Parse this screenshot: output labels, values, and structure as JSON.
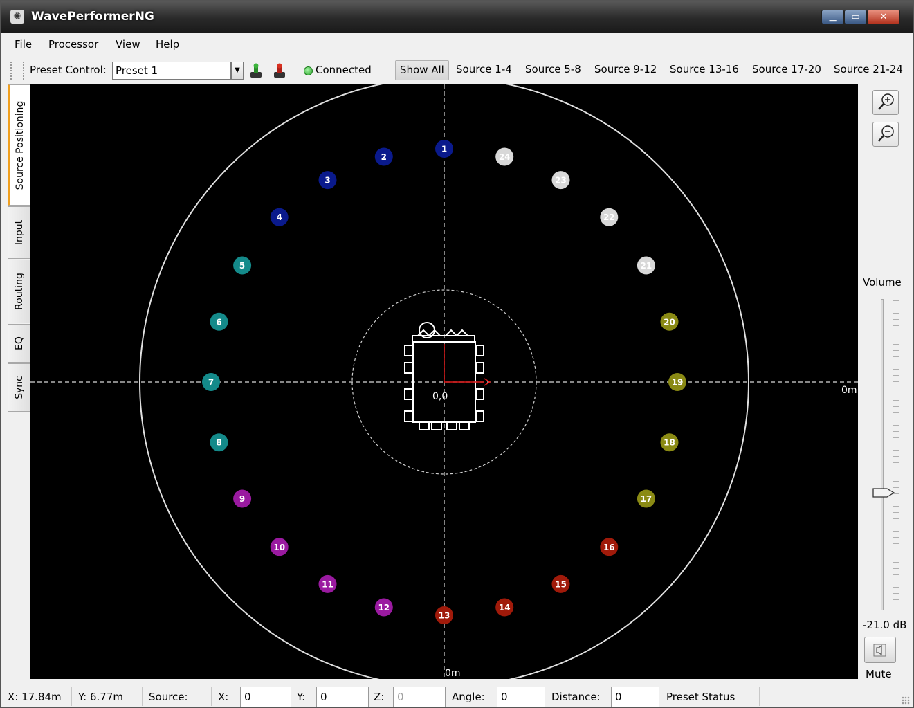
{
  "window": {
    "title": "WavePerformerNG"
  },
  "menu": [
    "File",
    "Processor",
    "View",
    "Help"
  ],
  "toolbar": {
    "preset_label": "Preset Control:",
    "preset_value": "Preset 1",
    "connection_status": "Connected",
    "source_buttons": [
      "Show All",
      "Source 1-4",
      "Source 5-8",
      "Source 9-12",
      "Source 13-16",
      "Source 17-20",
      "Source 21-24"
    ],
    "active_source_button": "Show All"
  },
  "tabs": [
    "Source Positioning",
    "Input",
    "Routing",
    "EQ",
    "Sync"
  ],
  "active_tab": "Source Positioning",
  "canvas": {
    "origin_label": "0,0",
    "axis_label_right": "0m",
    "axis_label_bottom": "0m",
    "sources": [
      {
        "n": "1",
        "color": "#0a1a8c"
      },
      {
        "n": "2",
        "color": "#0a1a8c"
      },
      {
        "n": "3",
        "color": "#0a1a8c"
      },
      {
        "n": "4",
        "color": "#0a1a8c"
      },
      {
        "n": "5",
        "color": "#148a8a"
      },
      {
        "n": "6",
        "color": "#148a8a"
      },
      {
        "n": "7",
        "color": "#148a8a"
      },
      {
        "n": "8",
        "color": "#148a8a"
      },
      {
        "n": "9",
        "color": "#9a1aa0"
      },
      {
        "n": "10",
        "color": "#9a1aa0"
      },
      {
        "n": "11",
        "color": "#9a1aa0"
      },
      {
        "n": "12",
        "color": "#9a1aa0"
      },
      {
        "n": "13",
        "color": "#a01a0a"
      },
      {
        "n": "14",
        "color": "#a01a0a"
      },
      {
        "n": "15",
        "color": "#a01a0a"
      },
      {
        "n": "16",
        "color": "#a01a0a"
      },
      {
        "n": "17",
        "color": "#8a8a14"
      },
      {
        "n": "18",
        "color": "#8a8a14"
      },
      {
        "n": "19",
        "color": "#8a8a14"
      },
      {
        "n": "20",
        "color": "#8a8a14"
      },
      {
        "n": "21",
        "color": "#d8d8d8"
      },
      {
        "n": "22",
        "color": "#d8d8d8"
      },
      {
        "n": "23",
        "color": "#d8d8d8"
      },
      {
        "n": "24",
        "color": "#d8d8d8"
      }
    ]
  },
  "volume": {
    "label": "Volume",
    "value_label": "-21.0 dB",
    "mute_label": "Mute"
  },
  "status": {
    "x_readout": "X: 17.84m",
    "y_readout": "Y: 6.77m",
    "source_label": "Source:",
    "x_label": "X:",
    "x_value": "0",
    "y_label": "Y:",
    "y_value": "0",
    "z_label": "Z:",
    "z_value": "0",
    "angle_label": "Angle:",
    "angle_value": "0",
    "distance_label": "Distance:",
    "distance_value": "0",
    "preset_status": "Preset Status"
  },
  "icons": {
    "app": "app-logo-icon",
    "load": "load-preset-icon",
    "save": "save-preset-icon",
    "zoom_in": "zoom-in-icon",
    "zoom_out": "zoom-out-icon",
    "mute": "speaker-icon"
  }
}
